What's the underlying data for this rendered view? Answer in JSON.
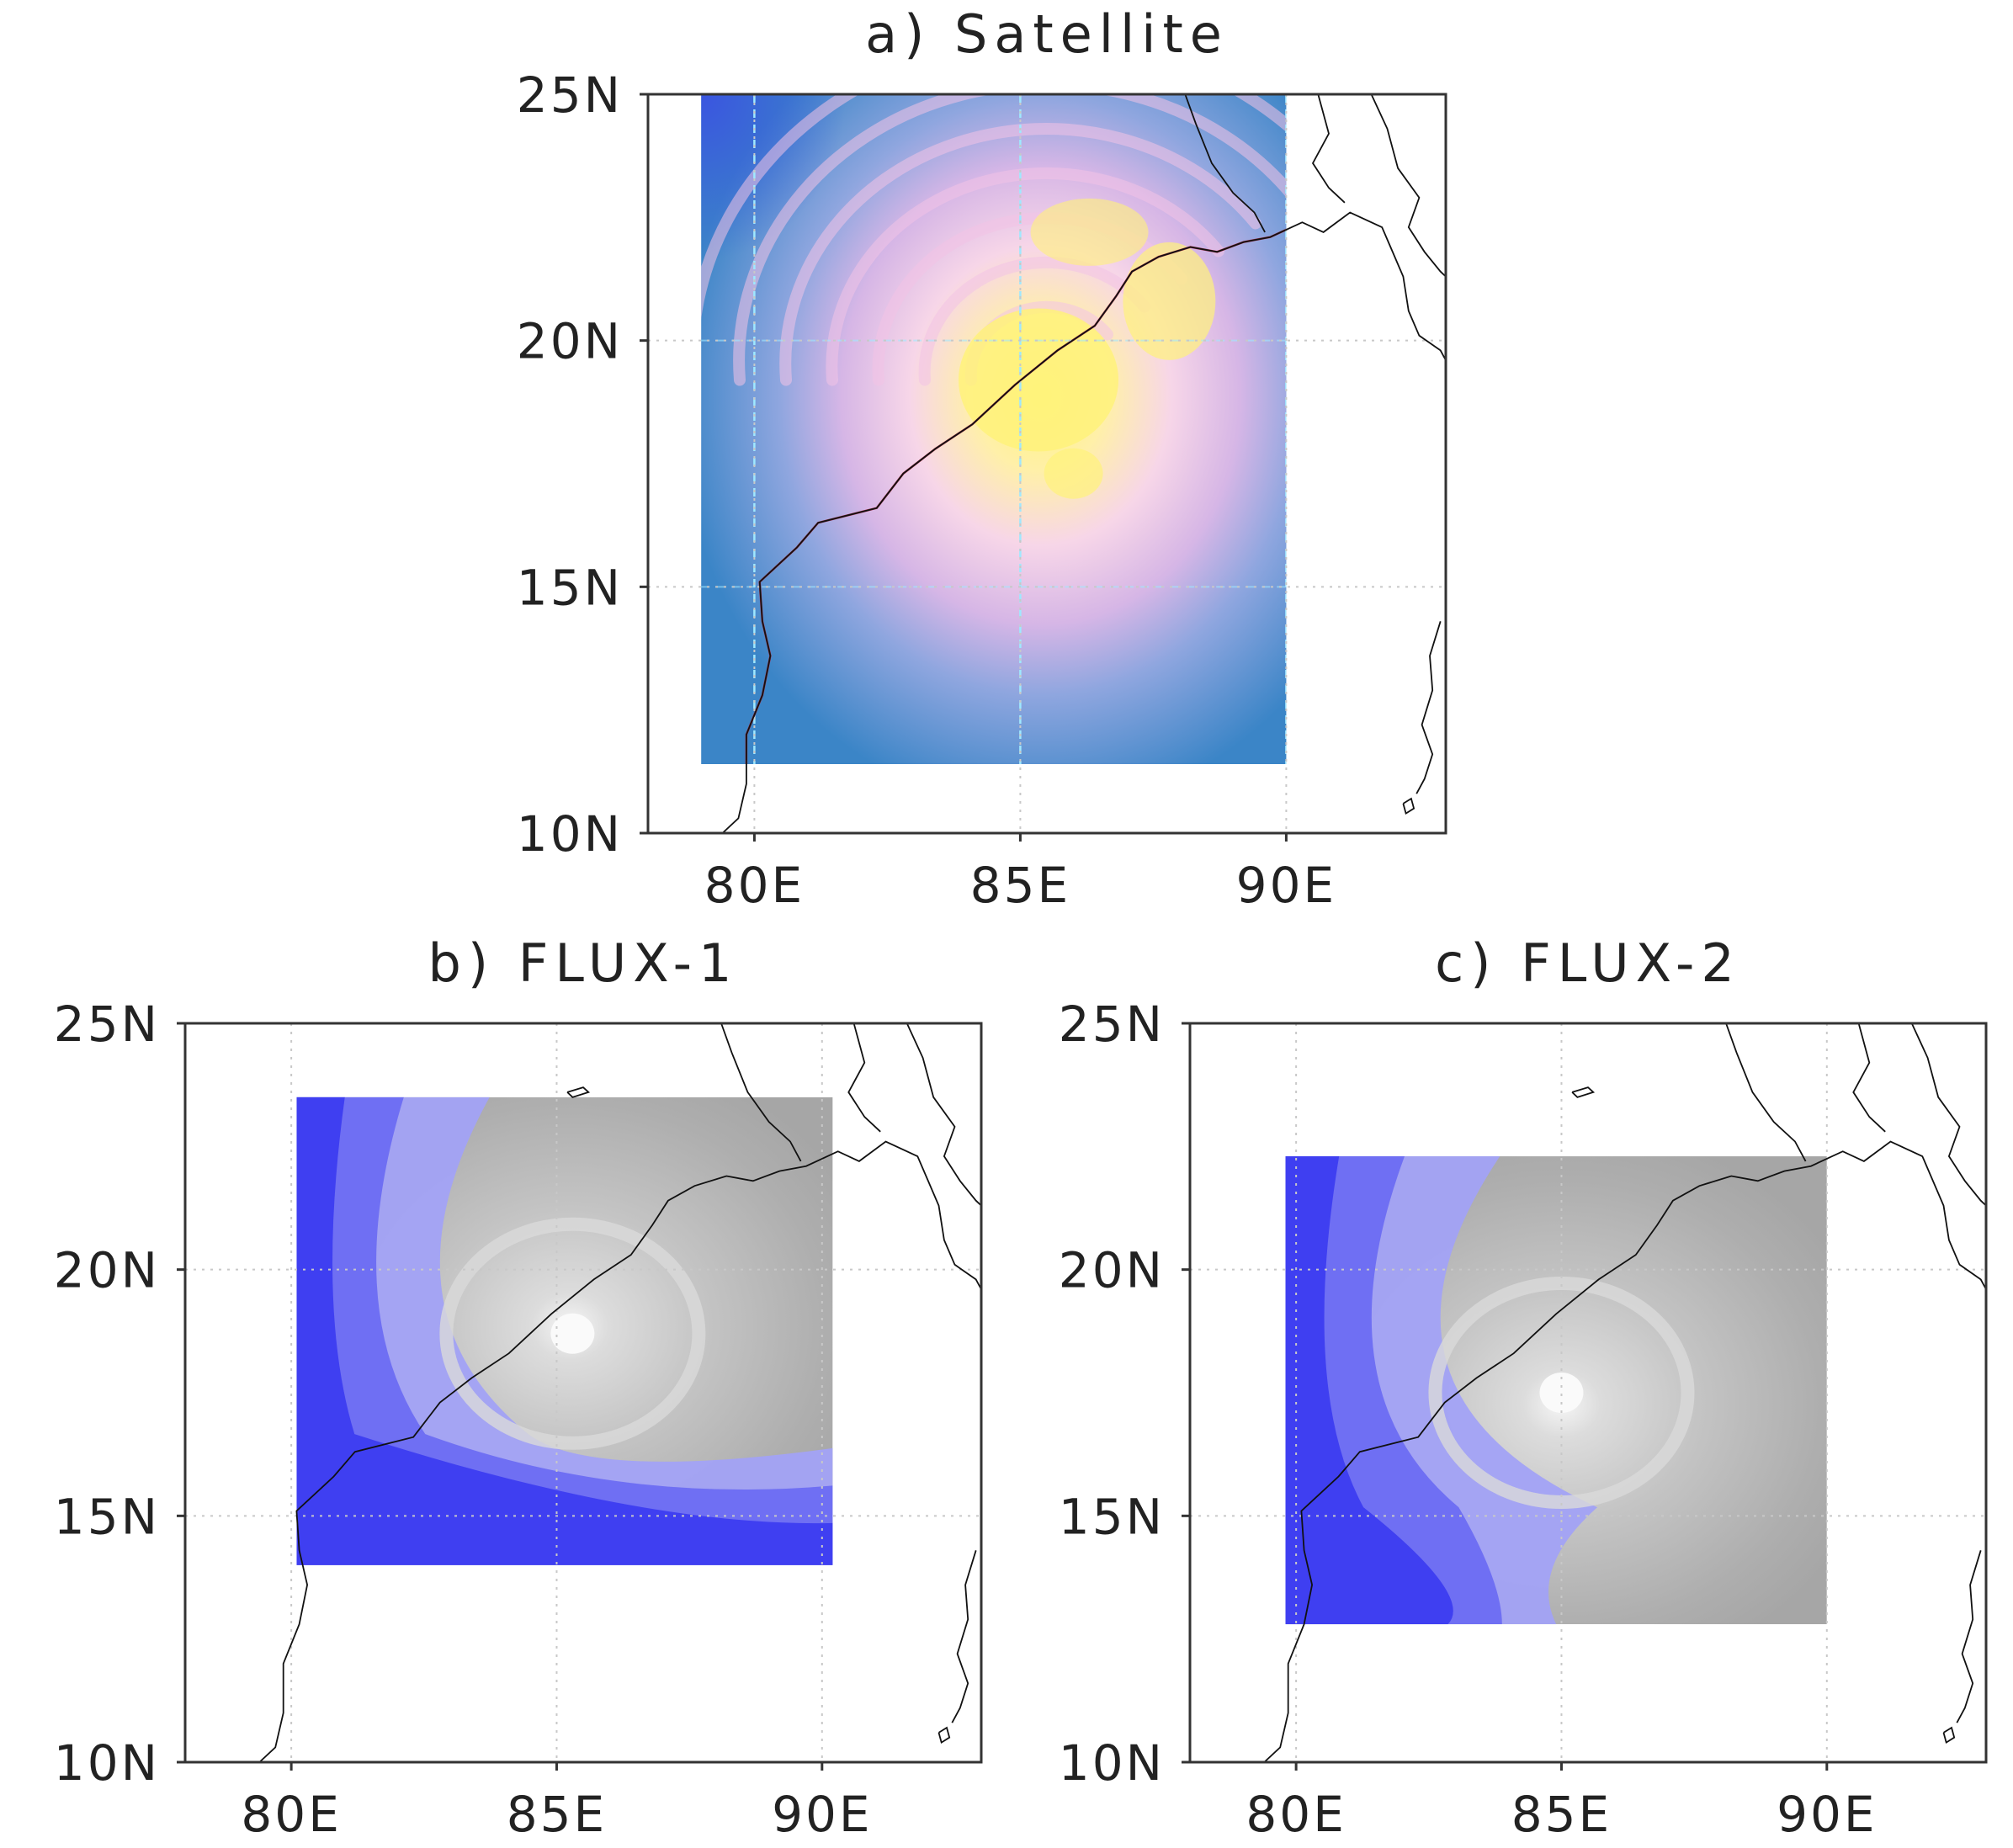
{
  "panels": [
    {
      "id": "a",
      "title": "a) Satellite",
      "field": "satellite",
      "lon_range": [
        78,
        93
      ],
      "lat_range": [
        10,
        25
      ],
      "xticks": [
        "80E",
        "85E",
        "90E"
      ],
      "yticks": [
        "25N",
        "20N",
        "15N",
        "10N"
      ],
      "image_extent": {
        "lon": [
          79,
          90
        ],
        "lat": [
          11.4,
          25
        ]
      }
    },
    {
      "id": "b",
      "title": "b) FLUX-1",
      "field": "model",
      "lon_range": [
        78,
        93
      ],
      "lat_range": [
        10,
        25
      ],
      "xticks": [
        "80E",
        "85E",
        "90E"
      ],
      "yticks": [
        "25N",
        "20N",
        "15N",
        "10N"
      ],
      "image_extent": {
        "lon": [
          80.1,
          90.2
        ],
        "lat": [
          14,
          23.5
        ]
      }
    },
    {
      "id": "c",
      "title": "c) FLUX-2",
      "field": "model",
      "lon_range": [
        78,
        93
      ],
      "lat_range": [
        10,
        25
      ],
      "xticks": [
        "80E",
        "85E",
        "90E"
      ],
      "yticks": [
        "25N",
        "20N",
        "15N",
        "10N"
      ],
      "image_extent": {
        "lon": [
          79.8,
          90
        ],
        "lat": [
          12.8,
          22.3
        ]
      }
    }
  ],
  "colors": {
    "frame": "#333333",
    "coastline": "#111111",
    "satellite_coast": "#b0304a",
    "grid": "#c8c8c8",
    "sat_ocean": "#3f86c8",
    "sat_cloud": "#f2c3e6",
    "sat_core": "#fff27a",
    "model_cloud": "#a9a9a9",
    "model_cloud_light": "#dadada",
    "model_blue_1": "#a2a2f6",
    "model_blue_2": "#6d6df2",
    "model_blue_3": "#3c3cf0"
  }
}
